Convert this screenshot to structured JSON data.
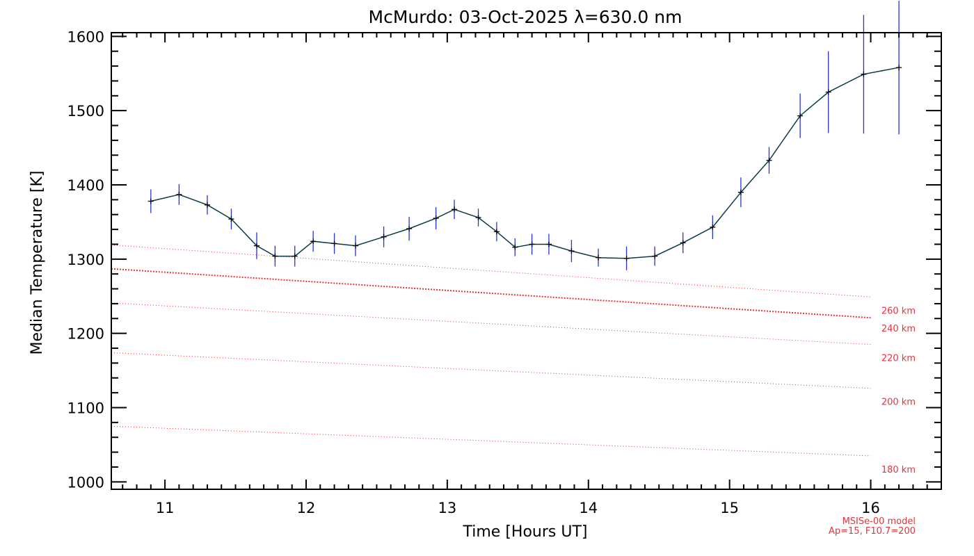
{
  "chart_data": {
    "type": "line",
    "title": "McMurdo: 03-Oct-2025 λ=630.0 nm",
    "xlabel": "Time [Hours UT]",
    "ylabel": "Median Temperature [K]",
    "xlim": [
      10.62,
      16.5
    ],
    "ylim": [
      990,
      1605
    ],
    "xticks": [
      11,
      12,
      13,
      14,
      15,
      16
    ],
    "yticks": [
      1000,
      1100,
      1200,
      1300,
      1400,
      1500,
      1600
    ],
    "xtick_labels": [
      "11",
      "12",
      "13",
      "14",
      "15",
      "16"
    ],
    "ytick_labels": [
      "1000",
      "1100",
      "1200",
      "1300",
      "1400",
      "1500",
      "1600"
    ],
    "series": [
      {
        "name": "Median Temperature",
        "color": "#0a3a4a",
        "errorbar_color": "#2233dd",
        "x": [
          10.9,
          11.1,
          11.3,
          11.47,
          11.65,
          11.78,
          11.92,
          12.05,
          12.2,
          12.35,
          12.55,
          12.73,
          12.92,
          13.05,
          13.22,
          13.35,
          13.48,
          13.6,
          13.72,
          13.88,
          14.07,
          14.27,
          14.47,
          14.67,
          14.88,
          15.08,
          15.28,
          15.5,
          15.7,
          15.95,
          16.2
        ],
        "y": [
          1378,
          1387,
          1373,
          1354,
          1318,
          1304,
          1304,
          1324,
          1321,
          1318,
          1330,
          1341,
          1355,
          1367,
          1356,
          1337,
          1316,
          1320,
          1320,
          1311,
          1302,
          1301,
          1304,
          1322,
          1343,
          1390,
          1433,
          1493,
          1525,
          1549,
          1558
        ],
        "err": [
          16,
          14,
          13,
          14,
          18,
          14,
          14,
          14,
          14,
          14,
          14,
          16,
          15,
          13,
          12,
          13,
          12,
          14,
          14,
          15,
          12,
          16,
          13,
          14,
          16,
          20,
          18,
          30,
          55,
          80,
          90
        ]
      }
    ],
    "model_lines": [
      {
        "label": "260 km",
        "y_start": 1319,
        "y_end": 1249,
        "style": "dotted"
      },
      {
        "label": "240 km",
        "y_start": 1287,
        "y_end": 1221,
        "style": "dotted-bold"
      },
      {
        "label": "220 km",
        "y_start": 1241,
        "y_end": 1185,
        "style": "dotted"
      },
      {
        "label": "200 km",
        "y_start": 1174,
        "y_end": 1126,
        "style": "dotted"
      },
      {
        "label": "180 km",
        "y_start": 1075,
        "y_end": 1035,
        "style": "dotted"
      }
    ],
    "model_line_x_range": [
      10.62,
      16.0
    ],
    "model_color": "#e8323a",
    "model_note": [
      "MSISe-00 model",
      "Ap=15, F10.7=200"
    ]
  }
}
